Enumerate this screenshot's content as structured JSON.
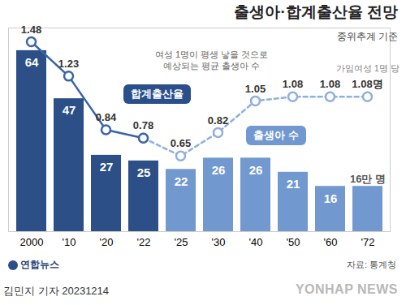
{
  "chart_data": {
    "type": "bar",
    "title": "출생아·합계출산율 전망",
    "subtitle": "중위추계 기준",
    "annotations": [
      "여성 1명이 평생 낳을 것으로\n예상되는 평균 출생아 수",
      "가임여성 1명 당"
    ],
    "source": "자료: 통계청",
    "logo": "연합뉴스",
    "byline": "김민지 기자 20231214",
    "watermark": "YONHAP NEWS",
    "categories": [
      "2000",
      "'10",
      "'20",
      "'22",
      "'25",
      "'30",
      "'40",
      "'50",
      "'60",
      "'72"
    ],
    "series": [
      {
        "name": "출생아 수",
        "type": "bar",
        "colors": [
          "#2b4f86",
          "#2b4f86",
          "#2b4f86",
          "#2b4f86",
          "#7299cf",
          "#7299cf",
          "#7299cf",
          "#7299cf",
          "#7299cf",
          "#7299cf"
        ],
        "values": [
          64,
          47,
          27,
          25,
          22,
          26,
          26,
          21,
          16,
          16
        ],
        "value_labels": [
          "64",
          "47",
          "27",
          "25",
          "22",
          "26",
          "26",
          "21",
          "16",
          "16만 명"
        ]
      },
      {
        "name": "합계출산율",
        "type": "line",
        "axis": "y2",
        "color": "#3a64a8",
        "line_style": "solid",
        "marker": "circle",
        "values": [
          1.48,
          1.23,
          0.84,
          0.78,
          null,
          null,
          null,
          null,
          null,
          null
        ],
        "value_labels": [
          "1.48",
          "1.23",
          "0.84",
          "0.78",
          null,
          null,
          null,
          null,
          null,
          null
        ]
      },
      {
        "name": "합계출산율",
        "type": "line",
        "axis": "y2",
        "color": "#8fb0dc",
        "line_style": "dashed",
        "marker": "circle",
        "values": [
          null,
          null,
          null,
          0.78,
          0.65,
          0.82,
          1.05,
          1.08,
          1.08,
          1.08
        ],
        "value_labels": [
          null,
          null,
          null,
          null,
          "0.65",
          "0.82",
          "1.05",
          "1.08",
          "1.08",
          "1.08명"
        ]
      }
    ],
    "ylim": [
      0,
      72
    ],
    "yticks": [],
    "y2lim": [
      0.1,
      1.58
    ],
    "y2ticks": [],
    "tick_labels": "x",
    "data_labels": true
  }
}
